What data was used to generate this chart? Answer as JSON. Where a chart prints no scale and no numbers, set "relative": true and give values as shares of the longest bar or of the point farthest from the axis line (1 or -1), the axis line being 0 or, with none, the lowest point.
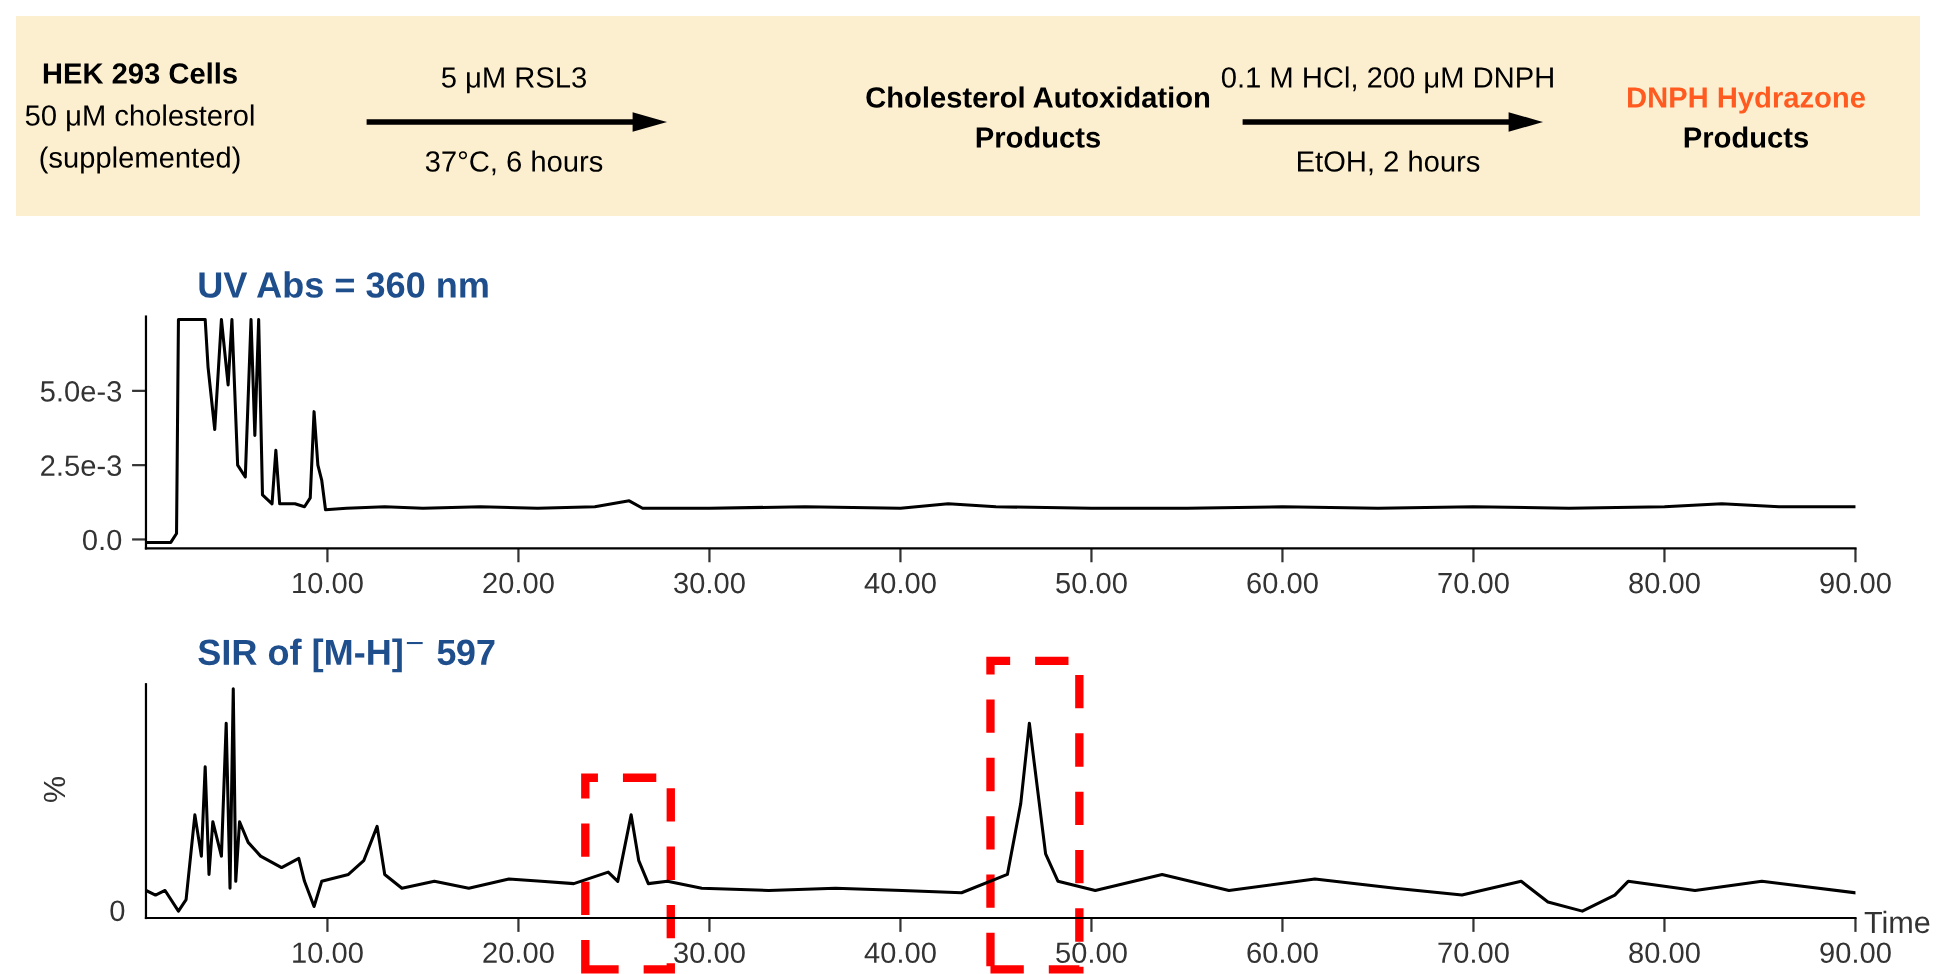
{
  "chart_data": [
    {
      "type": "other",
      "annotations": [
        "HEK 293 Cells",
        "50 μM cholesterol",
        "(supplemented)",
        "5 μM RSL3",
        "37°C, 6 hours",
        "Cholesterol Autoxidation",
        "Products",
        "0.1 M HCl, 200 μM DNPH",
        "EtOH, 2 hours",
        "DNPH Hydrazone",
        "Products"
      ]
    },
    {
      "type": "line",
      "title": "UV Abs = 360 nm",
      "xlim": [
        0.5,
        90
      ],
      "ylim": [
        -0.0003,
        0.0075
      ],
      "xticks": [
        {
          "value": 10,
          "label": "10.00"
        },
        {
          "value": 20,
          "label": "20.00"
        },
        {
          "value": 30,
          "label": "30.00"
        },
        {
          "value": 40,
          "label": "40.00"
        },
        {
          "value": 50,
          "label": "50.00"
        },
        {
          "value": 60,
          "label": "60.00"
        },
        {
          "value": 70,
          "label": "70.00"
        },
        {
          "value": 80,
          "label": "80.00"
        },
        {
          "value": 90,
          "label": "90.00"
        }
      ],
      "yticks": [
        {
          "value": 0,
          "label": "0.0"
        },
        {
          "value": 0.0025,
          "label": "2.5e-3"
        },
        {
          "value": 0.005,
          "label": "5.0e-3"
        }
      ],
      "series": [
        {
          "color": "#000000",
          "x": [
            0.6,
            1.2,
            1.8,
            2.1,
            2.2,
            2.4,
            3.0,
            3.6,
            3.75,
            4.1,
            4.45,
            4.8,
            5.0,
            5.3,
            5.7,
            6.0,
            6.2,
            6.4,
            6.6,
            7.1,
            7.3,
            7.5,
            8.3,
            8.8,
            9.1,
            9.3,
            9.5,
            9.7,
            9.9,
            11.0,
            13.0,
            15.0,
            18.0,
            21.0,
            24.0,
            25.8,
            26.5,
            30.0,
            35.0,
            40.0,
            42.5,
            45.0,
            50.0,
            55.0,
            60.0,
            65.0,
            70.0,
            75.0,
            80.0,
            83.0,
            86.0,
            90.0
          ],
          "values": [
            -0.0001,
            -0.0001,
            -0.0001,
            0.0002,
            0.0074,
            0.0074,
            0.0074,
            0.0074,
            0.0058,
            0.0037,
            0.0074,
            0.0052,
            0.0074,
            0.0025,
            0.0021,
            0.0074,
            0.0035,
            0.0074,
            0.0015,
            0.0012,
            0.003,
            0.0012,
            0.0012,
            0.0011,
            0.0014,
            0.0043,
            0.0025,
            0.002,
            0.001,
            0.00105,
            0.0011,
            0.00105,
            0.0011,
            0.00105,
            0.0011,
            0.0013,
            0.00105,
            0.00105,
            0.0011,
            0.00105,
            0.0012,
            0.0011,
            0.00105,
            0.00105,
            0.0011,
            0.00105,
            0.0011,
            0.00105,
            0.0011,
            0.0012,
            0.0011,
            0.0011
          ]
        }
      ]
    },
    {
      "type": "line",
      "title": "SIR of [M-H]$^{−}$ 597",
      "ylabel": "%",
      "xlabel": "Time",
      "relative": true,
      "xlim": [
        0.5,
        90
      ],
      "xticks": [
        {
          "value": 10,
          "label": "10.00"
        },
        {
          "value": 20,
          "label": "20.00"
        },
        {
          "value": 30,
          "label": "30.00"
        },
        {
          "value": 40,
          "label": "40.00"
        },
        {
          "value": 50,
          "label": "50.00"
        },
        {
          "value": 60,
          "label": "60.00"
        },
        {
          "value": 70,
          "label": "70.00"
        },
        {
          "value": 80,
          "label": "80.00"
        },
        {
          "value": 90,
          "label": "90.00"
        }
      ],
      "annotations": [
        "0"
      ],
      "series": [
        {
          "color": "#000000",
          "x": [
            0.5,
            1.0,
            1.5,
            2.2,
            2.6,
            3.06,
            3.4,
            3.6,
            3.8,
            4.0,
            4.45,
            4.7,
            4.9,
            5.07,
            5.2,
            5.4,
            5.85,
            6.5,
            7.6,
            8.5,
            8.8,
            9.3,
            9.7,
            11.1,
            11.9,
            12.6,
            13.0,
            13.9,
            15.6,
            17.4,
            19.5,
            21.2,
            22.9,
            24.7,
            25.2,
            25.9,
            26.3,
            26.8,
            27.8,
            29.6,
            33.1,
            36.6,
            40.1,
            43.2,
            45.6,
            46.3,
            46.75,
            47.0,
            47.6,
            48.25,
            50.2,
            53.7,
            57.2,
            61.7,
            65.9,
            69.4,
            72.5,
            73.9,
            75.7,
            77.4,
            78.1,
            81.6,
            85.1,
            90.0
          ],
          "values": [
            0.12,
            0.1,
            0.12,
            0.03,
            0.08,
            0.45,
            0.27,
            0.66,
            0.19,
            0.42,
            0.27,
            0.85,
            0.13,
            1.0,
            0.16,
            0.42,
            0.33,
            0.27,
            0.22,
            0.26,
            0.16,
            0.05,
            0.16,
            0.19,
            0.25,
            0.4,
            0.19,
            0.13,
            0.16,
            0.13,
            0.17,
            0.16,
            0.15,
            0.2,
            0.16,
            0.45,
            0.25,
            0.15,
            0.16,
            0.13,
            0.12,
            0.13,
            0.12,
            0.11,
            0.19,
            0.5,
            0.85,
            0.68,
            0.28,
            0.16,
            0.12,
            0.19,
            0.12,
            0.17,
            0.13,
            0.1,
            0.16,
            0.07,
            0.03,
            0.1,
            0.16,
            0.12,
            0.16,
            0.11
          ]
        }
      ]
    }
  ]
}
